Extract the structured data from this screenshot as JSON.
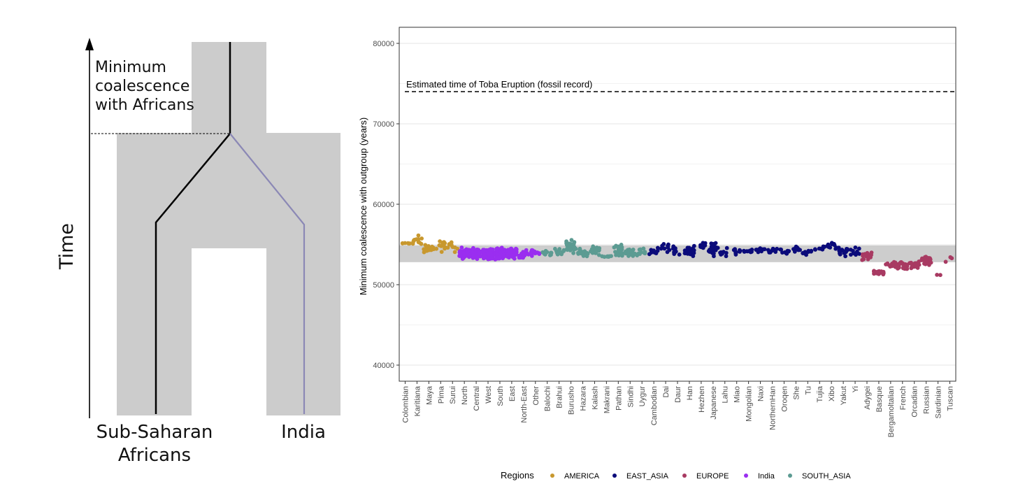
{
  "diagram": {
    "time_label": "Time",
    "min_coalescence_lines": [
      "Minimum",
      "coalescence",
      "with Africans"
    ],
    "left_pop_lines": [
      "Sub-Saharan",
      "Africans"
    ],
    "right_pop_label": "India"
  },
  "chart_data": {
    "type": "scatter",
    "ylabel": "Minimum coalescence with outgroup (years)",
    "xlabel": "",
    "ylim": [
      38000,
      82000
    ],
    "yticks": [
      40000,
      50000,
      60000,
      70000,
      80000
    ],
    "grid": true,
    "reference_line": {
      "y": 74000,
      "label": "Estimated time of Toba Eruption (fossil record)",
      "style": "dashed"
    },
    "shaded_band": {
      "ymin": 52800,
      "ymax": 54900
    },
    "categories": [
      "Colombian",
      "Karitiana",
      "Maya",
      "Pima",
      "Surui",
      "North",
      "Central",
      "West",
      "South",
      "East",
      "North-East",
      "Other",
      "Balochi",
      "Brahui",
      "Burusho",
      "Hazara",
      "Kalash",
      "Makrani",
      "Pathan",
      "Sindhi",
      "Uygur",
      "Cambodian",
      "Dai",
      "Daur",
      "Han",
      "Hezhen",
      "Japanese",
      "Lahu",
      "Miao",
      "Mongolian",
      "Naxi",
      "NorthernHan",
      "Oroqen",
      "She",
      "Tu",
      "Tujia",
      "Xibo",
      "Yakut",
      "Yi",
      "Adygei",
      "Basque",
      "Bergamoltalian",
      "French",
      "Orcadian",
      "Russian",
      "Sardinian",
      "Tuscan"
    ],
    "regions": [
      "AMERICA",
      "AMERICA",
      "AMERICA",
      "AMERICA",
      "AMERICA",
      "India",
      "India",
      "India",
      "India",
      "India",
      "India",
      "India",
      "SOUTH_ASIA",
      "SOUTH_ASIA",
      "SOUTH_ASIA",
      "SOUTH_ASIA",
      "SOUTH_ASIA",
      "SOUTH_ASIA",
      "SOUTH_ASIA",
      "SOUTH_ASIA",
      "SOUTH_ASIA",
      "EAST_ASIA",
      "EAST_ASIA",
      "EAST_ASIA",
      "EAST_ASIA",
      "EAST_ASIA",
      "EAST_ASIA",
      "EAST_ASIA",
      "EAST_ASIA",
      "EAST_ASIA",
      "EAST_ASIA",
      "EAST_ASIA",
      "EAST_ASIA",
      "EAST_ASIA",
      "EAST_ASIA",
      "EAST_ASIA",
      "EAST_ASIA",
      "EAST_ASIA",
      "EAST_ASIA",
      "EUROPE",
      "EUROPE",
      "EUROPE",
      "EUROPE",
      "EUROPE",
      "EUROPE",
      "EUROPE",
      "EUROPE"
    ],
    "group_stats": [
      {
        "median": 55200,
        "spread": 300,
        "n": 6
      },
      {
        "median": 55500,
        "spread": 900,
        "n": 14
      },
      {
        "median": 54600,
        "spread": 700,
        "n": 16
      },
      {
        "median": 54800,
        "spread": 1100,
        "n": 12
      },
      {
        "median": 55000,
        "spread": 1300,
        "n": 10
      },
      {
        "median": 53900,
        "spread": 900,
        "n": 50
      },
      {
        "median": 53900,
        "spread": 900,
        "n": 60
      },
      {
        "median": 53800,
        "spread": 900,
        "n": 80
      },
      {
        "median": 53900,
        "spread": 900,
        "n": 80
      },
      {
        "median": 53900,
        "spread": 900,
        "n": 80
      },
      {
        "median": 53800,
        "spread": 800,
        "n": 25
      },
      {
        "median": 54100,
        "spread": 600,
        "n": 15
      },
      {
        "median": 53900,
        "spread": 500,
        "n": 12
      },
      {
        "median": 54000,
        "spread": 800,
        "n": 12
      },
      {
        "median": 54800,
        "spread": 1000,
        "n": 24
      },
      {
        "median": 53900,
        "spread": 900,
        "n": 22
      },
      {
        "median": 54300,
        "spread": 700,
        "n": 22
      },
      {
        "median": 53500,
        "spread": 150,
        "n": 8
      },
      {
        "median": 54400,
        "spread": 1300,
        "n": 22
      },
      {
        "median": 54000,
        "spread": 800,
        "n": 22
      },
      {
        "median": 54000,
        "spread": 700,
        "n": 10
      },
      {
        "median": 54200,
        "spread": 600,
        "n": 10
      },
      {
        "median": 54600,
        "spread": 800,
        "n": 10
      },
      {
        "median": 54300,
        "spread": 800,
        "n": 10
      },
      {
        "median": 54100,
        "spread": 800,
        "n": 38
      },
      {
        "median": 54900,
        "spread": 800,
        "n": 10
      },
      {
        "median": 54500,
        "spread": 1300,
        "n": 28
      },
      {
        "median": 54000,
        "spread": 700,
        "n": 8
      },
      {
        "median": 54100,
        "spread": 400,
        "n": 10
      },
      {
        "median": 54200,
        "spread": 500,
        "n": 10
      },
      {
        "median": 54300,
        "spread": 500,
        "n": 10
      },
      {
        "median": 54200,
        "spread": 500,
        "n": 10
      },
      {
        "median": 54300,
        "spread": 700,
        "n": 10
      },
      {
        "median": 54500,
        "spread": 600,
        "n": 10
      },
      {
        "median": 53900,
        "spread": 800,
        "n": 10
      },
      {
        "median": 54500,
        "spread": 700,
        "n": 10
      },
      {
        "median": 54800,
        "spread": 700,
        "n": 10
      },
      {
        "median": 54200,
        "spread": 700,
        "n": 20
      },
      {
        "median": 54100,
        "spread": 700,
        "n": 10
      },
      {
        "median": 53500,
        "spread": 800,
        "n": 16
      },
      {
        "median": 51500,
        "spread": 500,
        "n": 24
      },
      {
        "median": 52500,
        "spread": 600,
        "n": 14
      },
      {
        "median": 52400,
        "spread": 600,
        "n": 28
      },
      {
        "median": 52600,
        "spread": 700,
        "n": 16
      },
      {
        "median": 53000,
        "spread": 800,
        "n": 24
      },
      {
        "median": 51200,
        "spread": 100,
        "n": 2
      },
      {
        "median": 53300,
        "spread": 1000,
        "n": 3
      }
    ],
    "legend": {
      "title": "Regions",
      "placement": "bottom",
      "entries": [
        {
          "name": "AMERICA",
          "color": "#c8982e"
        },
        {
          "name": "EAST_ASIA",
          "color": "#0b0b7a"
        },
        {
          "name": "EUROPE",
          "color": "#a83a62"
        },
        {
          "name": "India",
          "color": "#9a2ef0"
        },
        {
          "name": "SOUTH_ASIA",
          "color": "#5c9b92"
        }
      ]
    }
  }
}
